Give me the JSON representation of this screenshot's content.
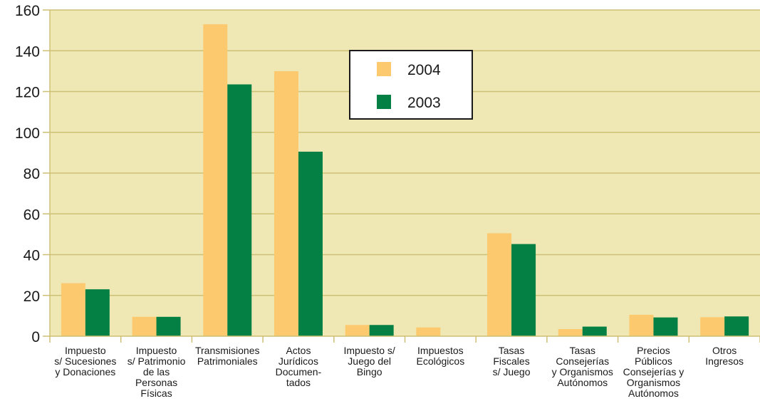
{
  "chart_data": {
    "type": "bar",
    "categories": [
      [
        "Impuesto",
        "s/ Sucesiones",
        "y Donaciones"
      ],
      [
        "Impuesto",
        "s/ Patrimonio",
        "de las",
        "Personas",
        "Físicas"
      ],
      [
        "Transmisiones",
        "Patrimoniales"
      ],
      [
        "Actos",
        "Jurídicos",
        "Documen-",
        "tados"
      ],
      [
        "Impuesto s/",
        "Juego del",
        "Bingo"
      ],
      [
        "Impuestos",
        "Ecológicos"
      ],
      [
        "Tasas",
        "Fiscales",
        "s/ Juego"
      ],
      [
        "Tasas",
        "Consejerías",
        "y  Organismos",
        "Autónomos"
      ],
      [
        "Precios",
        "Públicos",
        "Consejerías y",
        "Organismos",
        "Autónomos"
      ],
      [
        "Otros",
        "Ingresos"
      ]
    ],
    "series": [
      {
        "name": "2004",
        "color": "#fdc96f",
        "values": [
          26,
          9.5,
          153,
          130,
          5.5,
          4.3,
          50.5,
          3.5,
          10.5,
          9.3
        ]
      },
      {
        "name": "2003",
        "color": "#058044",
        "values": [
          23,
          9.5,
          123.5,
          90.5,
          5.5,
          0,
          45.2,
          4.7,
          9.2,
          9.7
        ]
      }
    ],
    "ylim": [
      0,
      160
    ],
    "yticks": [
      0,
      20,
      40,
      60,
      80,
      100,
      120,
      140,
      160
    ],
    "grid": true,
    "legend": "top-center",
    "plot_background": "#efe8b4",
    "grid_color": "#cdbf74"
  }
}
